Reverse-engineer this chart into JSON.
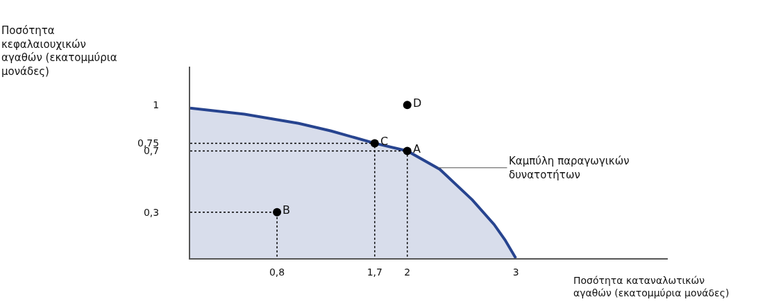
{
  "chart_data": {
    "type": "area",
    "xlabel": "Ποσότητα καταναλωτικών\nαγαθών (εκατομμύρια μονάδες)",
    "ylabel": "Ποσότητα\nκεφαλαιουχικών\nαγαθών (εκατομμύρια\nμονάδες)",
    "xlim": [
      0,
      4.4
    ],
    "ylim": [
      0,
      1.25
    ],
    "xticks": [
      {
        "value": 0.8,
        "label": "0,8"
      },
      {
        "value": 1.7,
        "label": "1,7"
      },
      2,
      3
    ],
    "yticks": [
      {
        "value": 0.3,
        "label": "0,3"
      },
      {
        "value": 0.7,
        "label": "0,7"
      },
      {
        "value": 0.75,
        "label": "0,75"
      },
      1
    ],
    "series": [
      {
        "color": "#27448f",
        "x": [
          0,
          0.5,
          1,
          1.3,
          1.7,
          2,
          2.3,
          2.6,
          2.8,
          2.9,
          3
        ],
        "values": [
          0.98,
          0.94,
          0.88,
          0.83,
          0.75,
          0.7,
          0.58,
          0.38,
          0.22,
          0.12,
          0
        ]
      },
      {
        "type": "line",
        "color": "#000000",
        "line_style": "dotted",
        "x": [
          0,
          1.7,
          1.7
        ],
        "values": [
          0.75,
          0.75,
          0
        ]
      },
      {
        "type": "line",
        "color": "#000000",
        "line_style": "dotted",
        "x": [
          0,
          2,
          2
        ],
        "values": [
          0.7,
          0.7,
          0
        ]
      },
      {
        "type": "line",
        "color": "#000000",
        "line_style": "dotted",
        "x": [
          0,
          0.8,
          0.8
        ],
        "values": [
          0.3,
          0.3,
          0
        ]
      },
      {
        "type": "scatter",
        "color": "#000000",
        "marker": "circle",
        "x": [
          2,
          1.7,
          0.8,
          2
        ],
        "values": [
          0.7,
          0.75,
          0.3,
          1
        ]
      }
    ],
    "annotations": [
      {
        "text": "A",
        "x": 2,
        "y": 0.7
      },
      {
        "text": "C",
        "x": 1.7,
        "y": 0.75
      },
      {
        "text": "B",
        "x": 0.8,
        "y": 0.3
      },
      {
        "text": "D",
        "x": 2,
        "y": 1
      },
      {
        "text": "Καμπύλη παραγωγικών\nδυνατοτήτων",
        "x": 2.28,
        "y": 0.59
      }
    ]
  }
}
